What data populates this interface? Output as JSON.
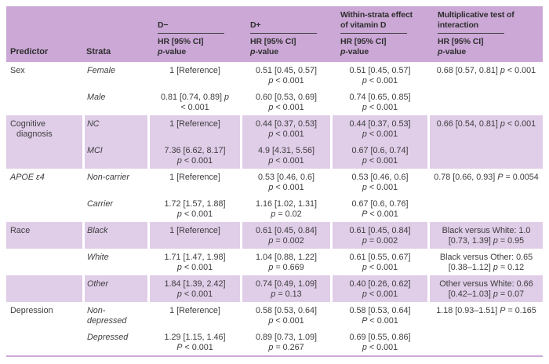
{
  "colors": {
    "page_bg": "#ffffff",
    "header_bg": "#cba8d6",
    "band_bg": "#e0cde8",
    "rule_purple": "#cba8d6",
    "spanner_rule": "#414141",
    "header_text": "#2e2e2e",
    "body_text": "#3e3e3e"
  },
  "table": {
    "header": {
      "predictor": "Predictor",
      "strata": "Strata",
      "groups": [
        {
          "label_lines": [
            "",
            "D−"
          ],
          "sub1": "HR [95% CI]",
          "sub2": "p-value"
        },
        {
          "label_lines": [
            "",
            "D+"
          ],
          "sub1": "HR [95% CI]",
          "sub2": "p-value"
        },
        {
          "label_lines": [
            "Within-strata effect",
            "of vitamin D"
          ],
          "sub1": "HR [95% CI]",
          "sub2": "p-value"
        },
        {
          "label_lines": [
            "Multiplicative test of",
            "interaction"
          ],
          "sub1": "HR [95% CI]",
          "sub2": "p-value"
        }
      ]
    },
    "rows": [
      {
        "predictor": "Sex",
        "strata": "Female",
        "d_minus": [
          "1 [Reference]",
          ""
        ],
        "d_plus": [
          "0.51 [0.45, 0.57]",
          "p < 0.001"
        ],
        "within": [
          "0.51 [0.45, 0.57]",
          "p < 0.001"
        ],
        "interaction": [
          "0.68 [0.57, 0.81] p < 0.001",
          ""
        ]
      },
      {
        "predictor": "",
        "strata": "Male",
        "d_minus": [
          "0.81 [0.74, 0.89] p",
          "< 0.001"
        ],
        "d_plus": [
          "0.60 [0.53, 0.69]",
          "p < 0.001"
        ],
        "within": [
          "0.74 [0.65, 0.85]",
          "p < 0.001"
        ],
        "interaction": [
          "",
          ""
        ]
      },
      {
        "predictor": "Cognitive diagnosis",
        "strata": "NC",
        "d_minus": [
          "1 [Reference]",
          ""
        ],
        "d_plus": [
          "0.44 [0.37, 0.53]",
          "p < 0.001"
        ],
        "within": [
          "0.44 [0.37, 0.53]",
          "p < 0.001"
        ],
        "interaction": [
          "0.66 [0.54, 0.81] p < 0.001",
          ""
        ]
      },
      {
        "predictor": "",
        "strata": "MCI",
        "d_minus": [
          "7.36 [6.62, 8.17]",
          "p < 0.001"
        ],
        "d_plus": [
          "4.9 [4.31, 5.56]",
          "p < 0.001"
        ],
        "within": [
          "0.67 [0.6, 0.74]",
          "p < 0.001"
        ],
        "interaction": [
          "",
          ""
        ]
      },
      {
        "predictor": "APOE ε4",
        "strata": "Non-carrier",
        "d_minus": [
          "1 [Reference]",
          ""
        ],
        "d_plus": [
          "0.53 [0.46, 0.6]",
          "p < 0.001"
        ],
        "within": [
          "0.53 [0.46, 0.6]",
          "p < 0.001"
        ],
        "interaction": [
          "0.78 [0.66, 0.93] P = 0.0054",
          ""
        ]
      },
      {
        "predictor": "",
        "strata": "Carrier",
        "d_minus": [
          "1.72 [1.57, 1.88]",
          "p < 0.001"
        ],
        "d_plus": [
          "1.16 [1.02, 1.31]",
          "p = 0.02"
        ],
        "within": [
          "0.67 [0.6, 0.76]",
          "P < 0.001"
        ],
        "interaction": [
          "",
          ""
        ]
      },
      {
        "predictor": "Race",
        "strata": "Black",
        "d_minus": [
          "1 [Reference]",
          ""
        ],
        "d_plus": [
          "0.61 [0.45, 0.84]",
          "p = 0.002"
        ],
        "within": [
          "0.61 [0.45, 0.84]",
          "p = 0.002"
        ],
        "interaction": [
          "Black versus White: 1.0",
          "[0.73, 1.39] p = 0.95"
        ]
      },
      {
        "predictor": "",
        "strata": "White",
        "d_minus": [
          "1.71 [1.47, 1.98]",
          "p < 0.001"
        ],
        "d_plus": [
          "1.04 [0.88, 1.22]",
          "p = 0.669"
        ],
        "within": [
          "0.61 [0.55, 0.67]",
          "p < 0.001"
        ],
        "interaction": [
          "Black versus Other: 0.65",
          "[0.38–1.12] p = 0.12"
        ]
      },
      {
        "predictor": "",
        "strata": "Other",
        "d_minus": [
          "1.84 [1.39, 2.42]",
          "p < 0.001"
        ],
        "d_plus": [
          "0.74 [0.49, 1.09]",
          "p = 0.13"
        ],
        "within": [
          "0.40 [0.26, 0.62]",
          "p < 0.001"
        ],
        "interaction": [
          "Other versus White: 0.66",
          "[0.42–1.03] p = 0.07"
        ]
      },
      {
        "predictor": "Depression",
        "strata": "Non-depressed",
        "d_minus": [
          "1 [Reference]",
          ""
        ],
        "d_plus": [
          "0.58 [0.53, 0.64]",
          "p < 0.001"
        ],
        "within": [
          "0.58 [0.53, 0.64]",
          "P < 0.001"
        ],
        "interaction": [
          "1.18 [0.93–1.51] P = 0.165",
          ""
        ]
      },
      {
        "predictor": "",
        "strata": "Depressed",
        "d_minus": [
          "1.29 [1.15, 1.46]",
          "P < 0.001"
        ],
        "d_plus": [
          "0.89 [0.73, 1.09]",
          "p = 0.267"
        ],
        "within": [
          "0.69 [0.55, 0.86]",
          "p < 0.001"
        ],
        "interaction": [
          "",
          ""
        ]
      }
    ]
  }
}
